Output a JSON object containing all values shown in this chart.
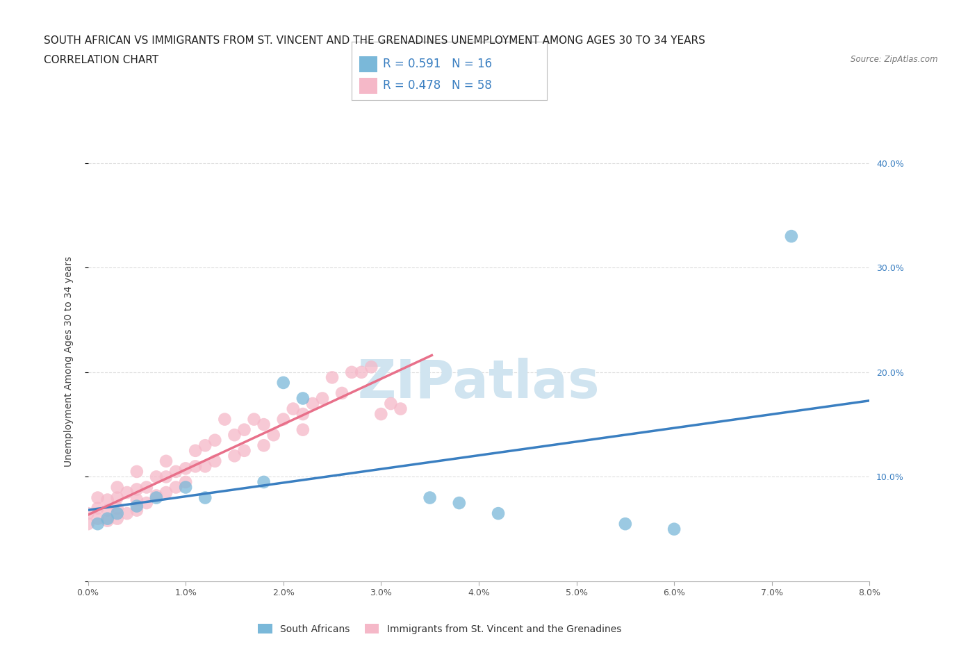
{
  "title_line1": "SOUTH AFRICAN VS IMMIGRANTS FROM ST. VINCENT AND THE GRENADINES UNEMPLOYMENT AMONG AGES 30 TO 34 YEARS",
  "title_line2": "CORRELATION CHART",
  "source_text": "Source: ZipAtlas.com",
  "ylabel": "Unemployment Among Ages 30 to 34 years",
  "watermark": "ZIPatlas",
  "blue_R": 0.591,
  "blue_N": 16,
  "pink_R": 0.478,
  "pink_N": 58,
  "blue_scatter_x": [
    0.001,
    0.002,
    0.003,
    0.005,
    0.007,
    0.01,
    0.012,
    0.018,
    0.02,
    0.022,
    0.035,
    0.038,
    0.042,
    0.055,
    0.06,
    0.072
  ],
  "blue_scatter_y": [
    0.055,
    0.06,
    0.065,
    0.072,
    0.08,
    0.09,
    0.08,
    0.095,
    0.19,
    0.175,
    0.08,
    0.075,
    0.065,
    0.055,
    0.05,
    0.33
  ],
  "pink_scatter_x": [
    0.0,
    0.0,
    0.001,
    0.001,
    0.001,
    0.002,
    0.002,
    0.002,
    0.003,
    0.003,
    0.003,
    0.003,
    0.004,
    0.004,
    0.005,
    0.005,
    0.005,
    0.005,
    0.006,
    0.006,
    0.007,
    0.007,
    0.008,
    0.008,
    0.008,
    0.009,
    0.009,
    0.01,
    0.01,
    0.011,
    0.011,
    0.012,
    0.012,
    0.013,
    0.013,
    0.014,
    0.015,
    0.015,
    0.016,
    0.016,
    0.017,
    0.018,
    0.018,
    0.019,
    0.02,
    0.021,
    0.022,
    0.022,
    0.023,
    0.024,
    0.025,
    0.026,
    0.027,
    0.028,
    0.029,
    0.03,
    0.031,
    0.032
  ],
  "pink_scatter_y": [
    0.055,
    0.065,
    0.06,
    0.07,
    0.08,
    0.058,
    0.068,
    0.078,
    0.06,
    0.07,
    0.08,
    0.09,
    0.065,
    0.085,
    0.068,
    0.078,
    0.088,
    0.105,
    0.075,
    0.09,
    0.082,
    0.1,
    0.085,
    0.1,
    0.115,
    0.09,
    0.105,
    0.095,
    0.108,
    0.11,
    0.125,
    0.11,
    0.13,
    0.115,
    0.135,
    0.155,
    0.12,
    0.14,
    0.125,
    0.145,
    0.155,
    0.13,
    0.15,
    0.14,
    0.155,
    0.165,
    0.145,
    0.16,
    0.17,
    0.175,
    0.195,
    0.18,
    0.2,
    0.2,
    0.205,
    0.16,
    0.17,
    0.165
  ],
  "xlim": [
    0.0,
    0.08
  ],
  "ylim": [
    0.0,
    0.42
  ],
  "x_ticks": [
    0.0,
    0.01,
    0.02,
    0.03,
    0.04,
    0.05,
    0.06,
    0.07,
    0.08
  ],
  "x_tick_labels": [
    "0.0%",
    "1.0%",
    "2.0%",
    "3.0%",
    "4.0%",
    "5.0%",
    "6.0%",
    "7.0%",
    "8.0%"
  ],
  "y_ticks_left": [
    0.0,
    0.1,
    0.2,
    0.3,
    0.4
  ],
  "y_tick_labels_left": [
    "",
    "",
    "",
    "",
    ""
  ],
  "right_y_ticks": [
    0.1,
    0.2,
    0.3,
    0.4
  ],
  "right_y_tick_labels": [
    "10.0%",
    "20.0%",
    "30.0%",
    "40.0%"
  ],
  "blue_color": "#7ab8d9",
  "pink_color": "#f5b8c8",
  "blue_line_color": "#3a7fc1",
  "pink_line_color": "#e8708a",
  "grid_color": "#dddddd",
  "background_color": "#ffffff",
  "legend_text_color": "#3a7fc1",
  "watermark_color": "#d0e4f0",
  "title_fontsize": 11,
  "ylabel_fontsize": 10,
  "legend_label_blue": "South Africans",
  "legend_label_pink": "Immigrants from St. Vincent and the Grenadines"
}
